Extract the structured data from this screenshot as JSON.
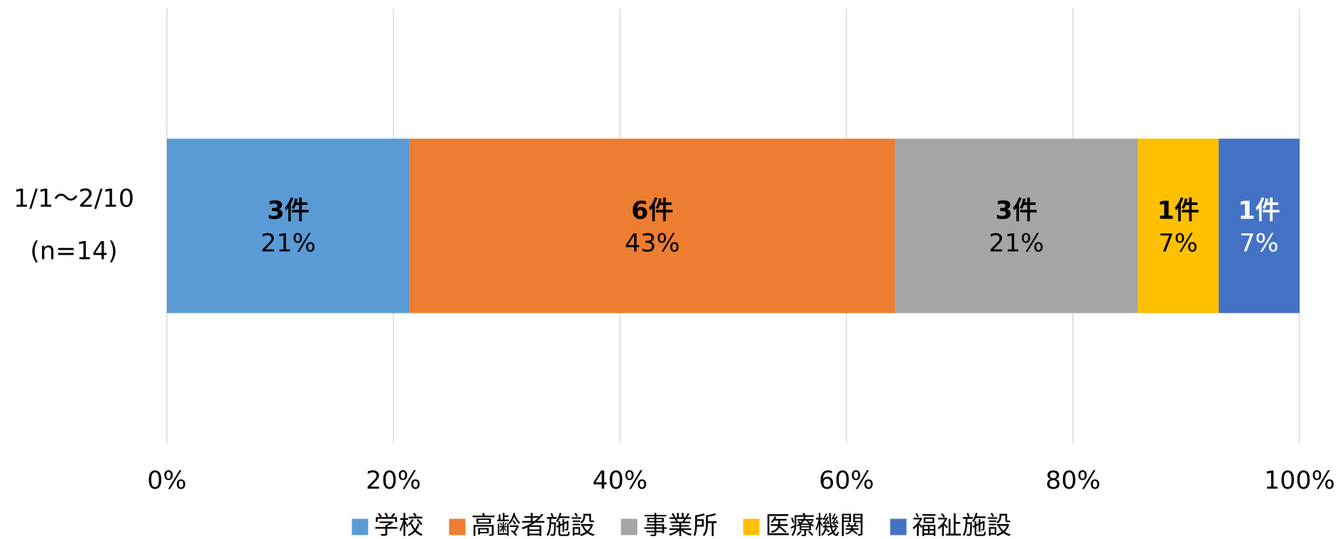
{
  "chart_data": {
    "type": "stacked_bar_horizontal",
    "categories": [
      [
        "1/1～2/10",
        "(n=14)"
      ]
    ],
    "series": [
      {
        "name": "学校",
        "color": "#5b9bd5",
        "label_color": "#000000",
        "values": [
          21.43
        ],
        "value_labels": [
          "21%"
        ],
        "count_labels": [
          "3件"
        ]
      },
      {
        "name": "高齢者施設",
        "color": "#ed7d31",
        "label_color": "#000000",
        "values": [
          42.86
        ],
        "value_labels": [
          "43%"
        ],
        "count_labels": [
          "6件"
        ]
      },
      {
        "name": "事業所",
        "color": "#a5a5a5",
        "label_color": "#000000",
        "values": [
          21.43
        ],
        "value_labels": [
          "21%"
        ],
        "count_labels": [
          "3件"
        ]
      },
      {
        "name": "医療機関",
        "color": "#ffc000",
        "label_color": "#000000",
        "values": [
          7.14
        ],
        "value_labels": [
          "7%"
        ],
        "count_labels": [
          "1件"
        ]
      },
      {
        "name": "福祉施設",
        "color": "#4472c4",
        "label_color": "#ffffff",
        "values": [
          7.14
        ],
        "value_labels": [
          "7%"
        ],
        "count_labels": [
          "1件"
        ]
      }
    ],
    "xlim": [
      0,
      100
    ],
    "xticks": [
      {
        "value": 0,
        "label": "0%"
      },
      {
        "value": 20,
        "label": "20%"
      },
      {
        "value": 40,
        "label": "40%"
      },
      {
        "value": 60,
        "label": "60%"
      },
      {
        "value": 80,
        "label": "80%"
      },
      {
        "value": 100,
        "label": "100%"
      }
    ],
    "grid": true,
    "legend": "bottom"
  }
}
